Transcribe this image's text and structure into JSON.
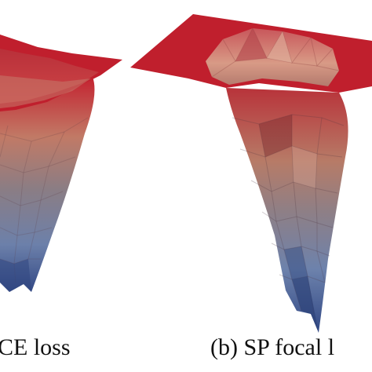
{
  "captions": {
    "left": "CE loss",
    "right": "(b) SP focal l"
  },
  "colors": {
    "top": "#c42230",
    "upper": "#b9644f",
    "middle": "#8c7b83",
    "lower": "#6f7fa7",
    "bottom": "#3a4f86",
    "edge": "#7d1f24"
  }
}
